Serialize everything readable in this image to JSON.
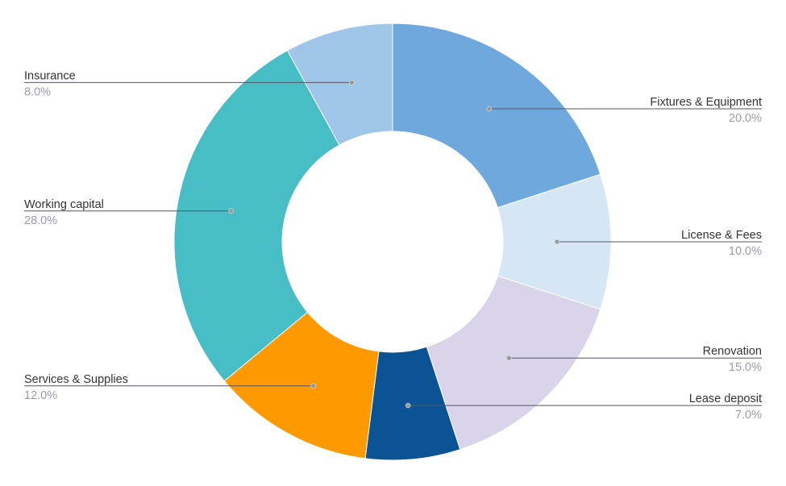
{
  "chart_data": {
    "type": "pie",
    "variant": "donut",
    "title": "",
    "start_angle_deg": 0,
    "direction": "clockwise",
    "slices": [
      {
        "label": "Fixtures & Equipment",
        "value": 20.0,
        "value_label": "20.0%",
        "color": "#6fa8dc"
      },
      {
        "label": "License & Fees",
        "value": 10.0,
        "value_label": "10.0%",
        "color": "#d6e6f5"
      },
      {
        "label": "Renovation",
        "value": 15.0,
        "value_label": "15.0%",
        "color": "#d9d4ea"
      },
      {
        "label": "Lease deposit",
        "value": 7.0,
        "value_label": "7.0%",
        "color": "#0b5394"
      },
      {
        "label": "Services & Supplies",
        "value": 12.0,
        "value_label": "12.0%",
        "color": "#ff9900"
      },
      {
        "label": "Working capital",
        "value": 28.0,
        "value_label": "28.0%",
        "color": "#47bdc6"
      },
      {
        "label": "Insurance",
        "value": 8.0,
        "value_label": "8.0%",
        "color": "#9fc5e8"
      }
    ],
    "legend": "none",
    "label_style": "leader-lines"
  }
}
